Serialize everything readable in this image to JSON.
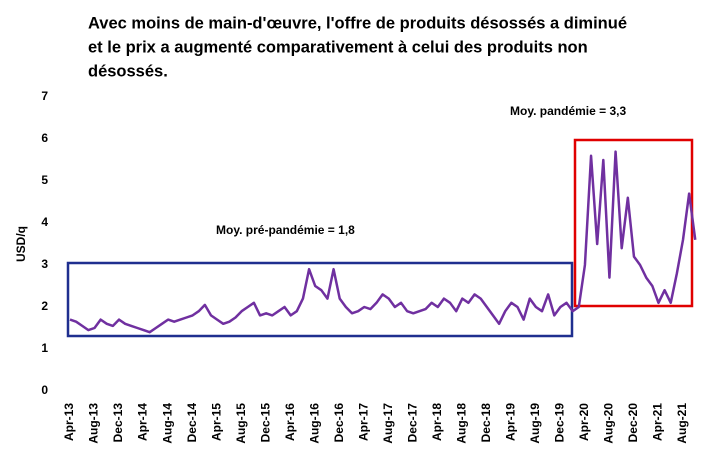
{
  "chart_data": {
    "type": "line",
    "title": [
      "Avec moins de main-d'œuvre, l'offre de produits désossés a diminué",
      "et le prix a augmenté comparativement à celui des produits non",
      "désossés."
    ],
    "ylabel": "USD/q",
    "annotations": [
      "Moy. pré-pandémie = 1,8",
      "Moy. pandémie = 3,3"
    ],
    "categories": [
      "Apr-13",
      null,
      null,
      null,
      "Aug-13",
      null,
      null,
      null,
      "Dec-13",
      null,
      null,
      null,
      "Apr-14",
      null,
      null,
      null,
      "Aug-14",
      null,
      null,
      null,
      "Dec-14",
      null,
      null,
      null,
      "Apr-15",
      null,
      null,
      null,
      "Aug-15",
      null,
      null,
      null,
      "Dec-15",
      null,
      null,
      null,
      "Apr-16",
      null,
      null,
      null,
      "Aug-16",
      null,
      null,
      null,
      "Dec-16",
      null,
      null,
      null,
      "Apr-17",
      null,
      null,
      null,
      "Aug-17",
      null,
      null,
      null,
      "Dec-17",
      null,
      null,
      null,
      "Apr-18",
      null,
      null,
      null,
      "Aug-18",
      null,
      null,
      null,
      "Dec-18",
      null,
      null,
      null,
      "Apr-19",
      null,
      null,
      null,
      "Aug-19",
      null,
      null,
      null,
      "Dec-19",
      null,
      null,
      null,
      "Apr-20",
      null,
      null,
      null,
      "Aug-20",
      null,
      null,
      null,
      "Dec-20",
      null,
      null,
      null,
      "Apr-21",
      null,
      null,
      null,
      "Aug-21",
      null,
      null
    ],
    "series": [
      {
        "color": "#7030a0",
        "values": [
          1.7,
          1.65,
          1.55,
          1.45,
          1.5,
          1.7,
          1.6,
          1.55,
          1.7,
          1.6,
          1.55,
          1.5,
          1.45,
          1.4,
          1.5,
          1.6,
          1.7,
          1.65,
          1.7,
          1.75,
          1.8,
          1.9,
          2.05,
          1.8,
          1.7,
          1.6,
          1.65,
          1.75,
          1.9,
          2.0,
          2.1,
          1.8,
          1.85,
          1.8,
          1.9,
          2.0,
          1.8,
          1.9,
          2.2,
          2.9,
          2.5,
          2.4,
          2.2,
          2.9,
          2.2,
          2.0,
          1.85,
          1.9,
          2.0,
          1.95,
          2.1,
          2.3,
          2.2,
          2.0,
          2.1,
          1.9,
          1.85,
          1.9,
          1.95,
          2.1,
          2.0,
          2.2,
          2.1,
          1.9,
          2.2,
          2.1,
          2.3,
          2.2,
          2.0,
          1.8,
          1.6,
          1.9,
          2.1,
          2.0,
          1.7,
          2.2,
          2.0,
          1.9,
          2.3,
          1.8,
          2.0,
          2.1,
          1.9,
          2.0,
          3.0,
          5.6,
          3.5,
          5.5,
          2.7,
          5.7,
          3.4,
          4.6,
          3.2,
          3.0,
          2.7,
          2.5,
          2.1,
          2.4,
          2.1,
          2.8,
          3.6,
          4.7,
          3.6
        ]
      }
    ],
    "ylim": [
      0,
      7
    ],
    "yticks": [
      0,
      1,
      2,
      3,
      4,
      5,
      6,
      7
    ]
  }
}
